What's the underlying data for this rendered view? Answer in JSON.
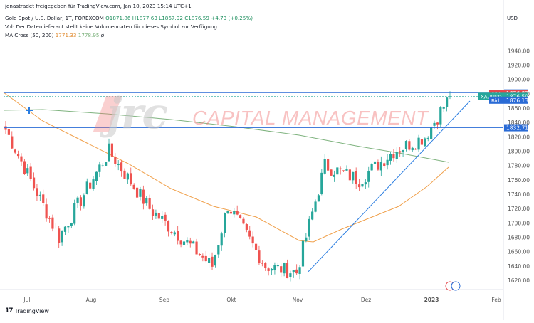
{
  "header": {
    "publisher_line": "jonastradet freigegeben für TradingView.com, Jan 10, 2023 15:14 UTC+1",
    "symbol_prefix": "Gold Spot / U.S. Dollar, 1T, FOREXCOM",
    "ohlc": "O1871.86  H1877.63  L1867.92  C1876.59  +4.73 (+0.25%)",
    "volume_note": "Vol: Der Datenlieferant stellt keine Volumendaten für dieses Symbol zur Verfügung.",
    "ma_label": "MA Cross (50, 200)",
    "ma_fast": "1771.33",
    "ma_slow": "1778.95",
    "ma_symbol": "ø"
  },
  "watermark": {
    "logo": "jrc",
    "text": "CAPITAL MANAGEMENT"
  },
  "footer": {
    "logo": "17",
    "brand": "TradingView"
  },
  "price_axis_unit": "USD",
  "price_tags": [
    {
      "label": "",
      "value": "1881.23",
      "color": "#2a6bd6"
    },
    {
      "label": "Ask",
      "value": "1876.83",
      "color": "#e5484d"
    },
    {
      "label": "XAUUSD",
      "value": "1876.59",
      "color": "#26a69a"
    },
    {
      "label": "Bid",
      "value": "1876.13",
      "color": "#2a6bd6"
    },
    {
      "label": "",
      "value": "1832.71",
      "color": "#2a6bd6"
    }
  ],
  "colors": {
    "up": "#26a69a",
    "down": "#ef5350",
    "ma_fast": "#f0a04b",
    "ma_slow": "#7fb37f",
    "trend": "#2a7de1",
    "hline": "#2a6bd6"
  },
  "chart_data": {
    "type": "candlestick",
    "title": "Gold Spot / U.S. Dollar, 1T, FOREXCOM",
    "yrange": [
      1610,
      1995
    ],
    "yticks": [
      1620,
      1640,
      1660,
      1680,
      1700,
      1720,
      1740,
      1760,
      1780,
      1800,
      1820,
      1840,
      1860,
      1880,
      1900,
      1920,
      1940
    ],
    "xlabels": [
      "Jul",
      "Aug",
      "Sep",
      "Okt",
      "Nov",
      "Dez",
      "2023",
      "Feb"
    ],
    "horizontal_lines": [
      1881.23,
      1832.71
    ],
    "trendline": {
      "from": [
        "Nov 3",
        1631
      ],
      "to": [
        "Jan 10",
        1870
      ]
    },
    "key_points": [
      {
        "x": "Jun 28",
        "close": 1830
      },
      {
        "x": "Jul 21",
        "close": 1680
      },
      {
        "x": "Aug 12",
        "close": 1800
      },
      {
        "x": "Aug 29",
        "close": 1720
      },
      {
        "x": "Sep 28",
        "close": 1640
      },
      {
        "x": "Okt 4",
        "close": 1725
      },
      {
        "x": "Okt 20",
        "close": 1640
      },
      {
        "x": "Nov 3",
        "close": 1631
      },
      {
        "x": "Nov 15",
        "close": 1780
      },
      {
        "x": "Nov 30",
        "close": 1760
      },
      {
        "x": "Dez 15",
        "close": 1800
      },
      {
        "x": "Dez 30",
        "close": 1820
      },
      {
        "x": "Jan 10",
        "close": 1876.59
      }
    ],
    "ma_fast_last": 1771.33,
    "ma_slow_last": 1778.95
  }
}
